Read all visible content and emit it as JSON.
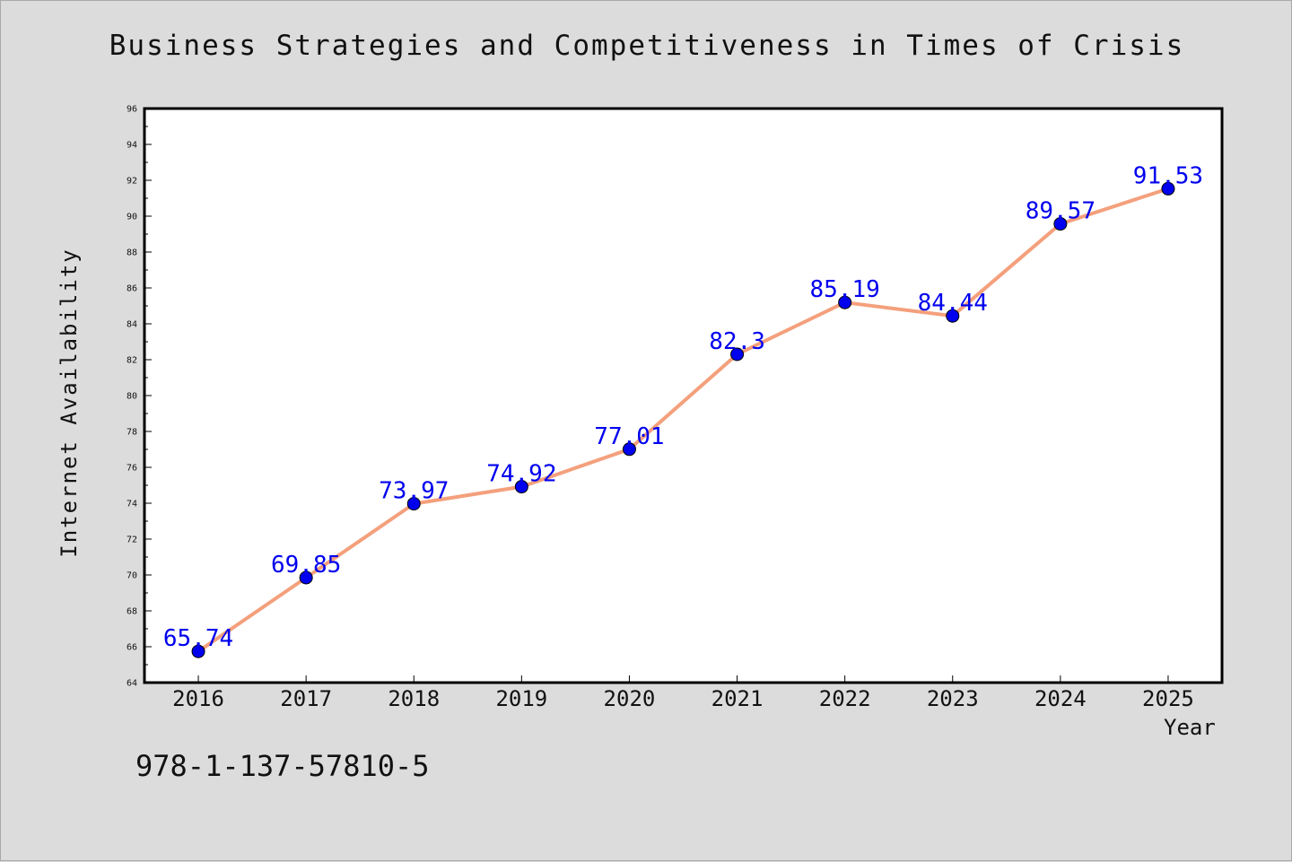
{
  "chart_data": {
    "type": "line",
    "title": "Business Strategies and Competitiveness in Times of Crisis",
    "xlabel": "Year",
    "ylabel": "Internet Availability",
    "categories": [
      "2016",
      "2017",
      "2018",
      "2019",
      "2020",
      "2021",
      "2022",
      "2023",
      "2024",
      "2025"
    ],
    "series": [
      {
        "values": [
          65.74,
          69.85,
          73.97,
          74.92,
          77.01,
          82.3,
          85.19,
          84.44,
          89.57,
          91.53
        ]
      }
    ],
    "data_labels": [
      "65.74",
      "69.85",
      "73.97",
      "74.92",
      "77.01",
      "82.3",
      "85.19",
      "84.44",
      "89.57",
      "91.53"
    ],
    "ylim": [
      64,
      96
    ],
    "yticks": [
      "64",
      "66",
      "68",
      "70",
      "72",
      "74",
      "76",
      "78",
      "80",
      "82",
      "84",
      "86",
      "88",
      "90",
      "92",
      "94",
      "96"
    ],
    "grid": false,
    "legend": "none",
    "colors": {
      "line": "#f4a07c",
      "marker": "#0000ee",
      "data_label": "#0000ee",
      "plot_background": "#ffffff",
      "figure_background": "#dcdcdc"
    }
  },
  "annotation": "978-1-137-57810-5"
}
